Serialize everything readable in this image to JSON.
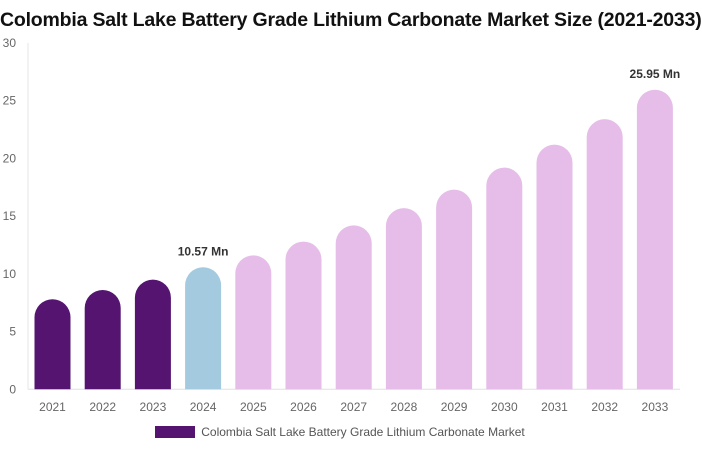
{
  "chart_data": {
    "type": "bar",
    "title": "Colombia Salt Lake Battery Grade Lithium Carbonate Market Size (2021-2033)",
    "categories": [
      "2021",
      "2022",
      "2023",
      "2024",
      "2025",
      "2026",
      "2027",
      "2028",
      "2029",
      "2030",
      "2031",
      "2032",
      "2033"
    ],
    "series": [
      {
        "name": "Colombia Salt Lake Battery Grade Lithium Carbonate Market",
        "values": [
          7.8,
          8.6,
          9.5,
          10.57,
          11.6,
          12.8,
          14.2,
          15.7,
          17.3,
          19.2,
          21.2,
          23.4,
          25.95
        ]
      }
    ],
    "bar_colors": {
      "historical": "#541470",
      "base_year": "#a3cadf",
      "forecast": "#e6bde9"
    },
    "base_year": "2024",
    "data_labels": [
      {
        "category": "2024",
        "text": "10.57 Mn"
      },
      {
        "category": "2033",
        "text": "25.95 Mn"
      }
    ],
    "ylim": [
      0,
      30
    ],
    "yticks": [
      0,
      5,
      10,
      15,
      20,
      25,
      30
    ],
    "xlabel": "",
    "ylabel": "",
    "grid": false,
    "legend_position": "bottom"
  }
}
